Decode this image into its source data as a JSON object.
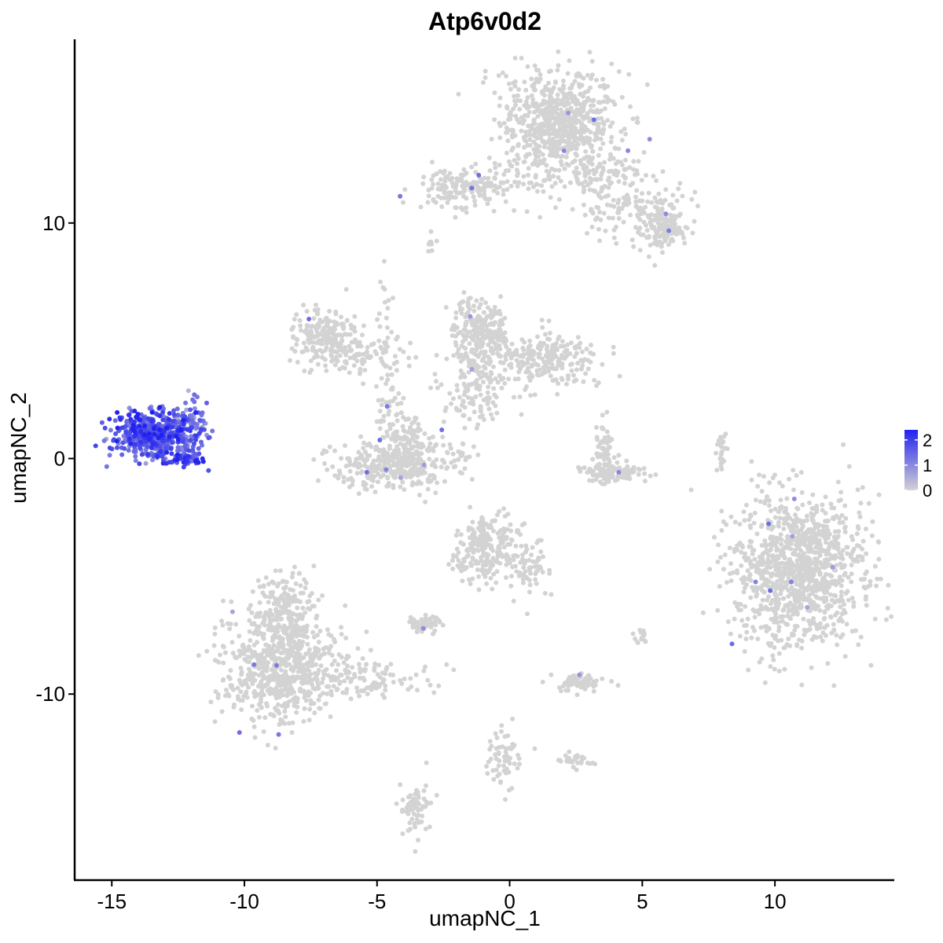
{
  "chart_data": {
    "type": "scatter",
    "title": "Atp6v0d2",
    "xlabel": "umapNC_1",
    "ylabel": "umapNC_2",
    "xlim": [
      -16.4,
      14.5
    ],
    "ylim": [
      -17.9,
      17.8
    ],
    "x_ticks": [
      -15,
      -10,
      -5,
      0,
      5,
      10
    ],
    "y_ticks": [
      -10,
      0,
      10
    ],
    "x_tick_labels": [
      "-15",
      "-10",
      "-5",
      "0",
      "5",
      "10"
    ],
    "y_tick_labels": [
      "-10",
      "0",
      "10"
    ],
    "grid": false,
    "legend": {
      "placement": "right",
      "type": "colorbar",
      "min": 0,
      "max": 2.4,
      "ticks": [
        0,
        1,
        2
      ],
      "tick_labels": [
        "0",
        "1",
        "2"
      ],
      "color_low": "#D3D3D3",
      "color_high": "#2222F0"
    },
    "point_color_low": "#D3D3D3",
    "point_color_high": "#2222F0",
    "clusters": [
      {
        "center": [
          1.9,
          14.2
        ],
        "spread": [
          1.1,
          1.1
        ],
        "n": 700,
        "expr": 0
      },
      {
        "center": [
          4.6,
          10.7
        ],
        "spread": [
          1.1,
          0.6
        ],
        "n": 130,
        "expr": 0
      },
      {
        "center": [
          5.8,
          9.7
        ],
        "spread": [
          0.4,
          0.4
        ],
        "n": 130,
        "expr": 0
      },
      {
        "center": [
          -1.7,
          11.5
        ],
        "spread": [
          1.0,
          0.4
        ],
        "n": 160,
        "expr": 0
      },
      {
        "center": [
          -1.1,
          5.3
        ],
        "spread": [
          0.5,
          0.7
        ],
        "n": 220,
        "expr": 0
      },
      {
        "center": [
          1.4,
          4.3
        ],
        "spread": [
          1.0,
          0.6
        ],
        "n": 240,
        "expr": 0
      },
      {
        "center": [
          -1.3,
          3.0
        ],
        "spread": [
          0.6,
          0.9
        ],
        "n": 140,
        "expr": 0
      },
      {
        "center": [
          -7.0,
          5.2
        ],
        "spread": [
          0.6,
          0.6
        ],
        "n": 180,
        "expr": 0
      },
      {
        "center": [
          -5.6,
          4.4
        ],
        "spread": [
          0.8,
          0.4
        ],
        "n": 80,
        "expr": 0
      },
      {
        "center": [
          -4.4,
          -0.3
        ],
        "spread": [
          1.1,
          0.5
        ],
        "n": 300,
        "expr": 0
      },
      {
        "center": [
          -3.8,
          0.6
        ],
        "spread": [
          0.4,
          0.8
        ],
        "n": 120,
        "expr": 0
      },
      {
        "center": [
          -4.6,
          2.2
        ],
        "spread": [
          0.2,
          0.6
        ],
        "n": 40,
        "expr": 0
      },
      {
        "center": [
          -13.4,
          1.0
        ],
        "spread": [
          0.8,
          0.5
        ],
        "n": 520,
        "expr": 1.6
      },
      {
        "center": [
          -11.9,
          1.7
        ],
        "spread": [
          0.25,
          0.5
        ],
        "n": 50,
        "expr": 1.2
      },
      {
        "center": [
          -12.2,
          0.0
        ],
        "spread": [
          0.3,
          0.15
        ],
        "n": 40,
        "expr": 1.8
      },
      {
        "center": [
          10.9,
          -4.7
        ],
        "spread": [
          1.2,
          1.6
        ],
        "n": 1100,
        "expr": 0
      },
      {
        "center": [
          -8.7,
          -8.8
        ],
        "spread": [
          1.0,
          1.2
        ],
        "n": 650,
        "expr": 0
      },
      {
        "center": [
          -8.4,
          -6.3
        ],
        "spread": [
          0.5,
          0.8
        ],
        "n": 150,
        "expr": 0
      },
      {
        "center": [
          -5.6,
          -9.3
        ],
        "spread": [
          1.3,
          0.4
        ],
        "n": 130,
        "expr": 0
      },
      {
        "center": [
          -0.9,
          -3.9
        ],
        "spread": [
          0.6,
          0.7
        ],
        "n": 240,
        "expr": 0
      },
      {
        "center": [
          0.8,
          -4.6
        ],
        "spread": [
          0.4,
          0.6
        ],
        "n": 60,
        "expr": 0
      },
      {
        "center": [
          3.8,
          -0.6
        ],
        "spread": [
          0.6,
          0.2
        ],
        "n": 130,
        "expr": 0
      },
      {
        "center": [
          3.6,
          0.6
        ],
        "spread": [
          0.2,
          0.5
        ],
        "n": 50,
        "expr": 0
      },
      {
        "center": [
          2.6,
          -9.5
        ],
        "spread": [
          0.5,
          0.2
        ],
        "n": 70,
        "expr": 0
      },
      {
        "center": [
          -3.2,
          -7.0
        ],
        "spread": [
          0.3,
          0.2
        ],
        "n": 50,
        "expr": 0
      },
      {
        "center": [
          -0.2,
          -12.8
        ],
        "spread": [
          0.3,
          0.6
        ],
        "n": 60,
        "expr": 0
      },
      {
        "center": [
          2.3,
          -12.8
        ],
        "spread": [
          0.4,
          0.2
        ],
        "n": 30,
        "expr": 0
      },
      {
        "center": [
          -3.5,
          -14.9
        ],
        "spread": [
          0.3,
          0.6
        ],
        "n": 70,
        "expr": 0
      },
      {
        "center": [
          5.0,
          -7.5
        ],
        "spread": [
          0.15,
          0.2
        ],
        "n": 15,
        "expr": 0
      },
      {
        "center": [
          8.0,
          0.3
        ],
        "spread": [
          0.1,
          0.6
        ],
        "n": 25,
        "expr": 0
      },
      {
        "center": [
          -3.0,
          9.1
        ],
        "spread": [
          0.1,
          0.15
        ],
        "n": 8,
        "expr": 0
      },
      {
        "center": [
          -2.1,
          0.0
        ],
        "spread": [
          0.5,
          0.4
        ],
        "n": 20,
        "expr": 0
      },
      {
        "center": [
          -4.5,
          6.0
        ],
        "spread": [
          0.3,
          1.0
        ],
        "n": 25,
        "expr": 0
      },
      {
        "center": [
          0.8,
          11.9
        ],
        "spread": [
          0.6,
          0.3
        ],
        "n": 30,
        "expr": 0
      },
      {
        "center": [
          3.5,
          12.0
        ],
        "spread": [
          0.8,
          0.4
        ],
        "n": 60,
        "expr": 0
      }
    ]
  }
}
